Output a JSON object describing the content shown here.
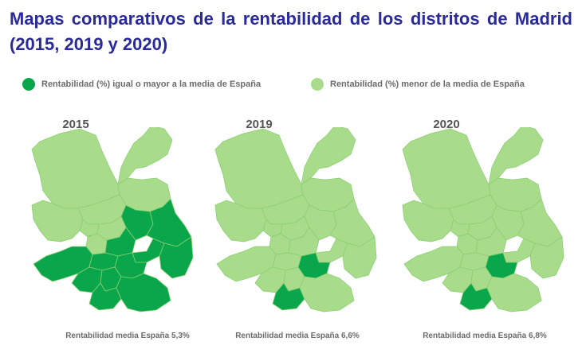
{
  "title": "Mapas comparativos de la rentabilidad de los distritos de Madrid (2015, 2019 y 2020)",
  "legend": {
    "high_label": "Rentabilidad (%) igual o mayor a la media de España",
    "low_label": "Rentabilidad (%) menor de la media de España",
    "high_color": "#0aa64b",
    "low_color": "#a8dc8a"
  },
  "border_color": "#8ccf74",
  "maps": [
    {
      "year": "2015",
      "caption": "Rentabilidad media España 5,3%",
      "high_districts": [
        "centro-west-small",
        "latina",
        "carabanchel",
        "usera",
        "villaverde",
        "puente-vallecas",
        "villa-vallecas",
        "moratalaz",
        "vicalvaro",
        "ciudad-lineal",
        "san-blas",
        "arganzuela",
        "retiro"
      ]
    },
    {
      "year": "2019",
      "caption": "Rentabilidad media España 6,6%",
      "high_districts": [
        "villaverde",
        "puente-vallecas"
      ]
    },
    {
      "year": "2020",
      "caption": "Rentabilidad media España 6,8%",
      "high_districts": [
        "villaverde",
        "puente-vallecas"
      ]
    }
  ]
}
